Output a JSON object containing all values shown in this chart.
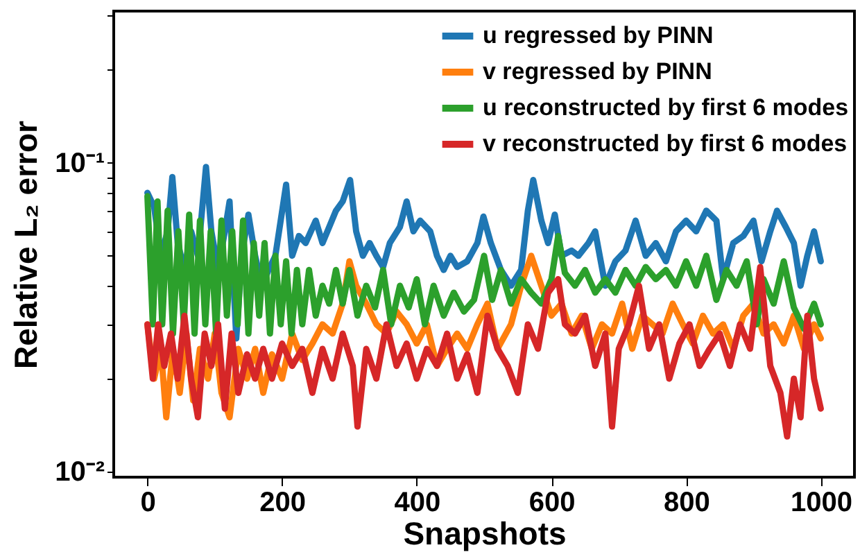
{
  "chart_data": {
    "type": "line",
    "xlabel": "Snapshots",
    "ylabel": "Relative L₂ error",
    "log": "y",
    "legend": "top right",
    "grid": false,
    "line_style": "solid",
    "marker": "none",
    "xlim": [
      -50,
      1050
    ],
    "xticks": [
      0,
      200,
      400,
      600,
      800,
      1000
    ],
    "ylim": [
      0.0096,
      0.31
    ],
    "yticks": [
      {
        "value": 0.01,
        "label": "10⁻²"
      },
      {
        "value": 0.02,
        "label": null
      },
      {
        "value": 0.03,
        "label": null
      },
      {
        "value": 0.04,
        "label": null
      },
      {
        "value": 0.05,
        "label": null
      },
      {
        "value": 0.06,
        "label": null
      },
      {
        "value": 0.07,
        "label": null
      },
      {
        "value": 0.08,
        "label": null
      },
      {
        "value": 0.09,
        "label": null
      },
      {
        "value": 0.1,
        "label": "10⁻¹"
      },
      {
        "value": 0.2,
        "label": null
      },
      {
        "value": 0.3,
        "label": null
      }
    ],
    "series": [
      {
        "name": "u regressed by PINN",
        "color": "#1f77b4",
        "x": [
          0,
          10,
          20,
          30,
          37,
          45,
          55,
          65,
          75,
          87,
          95,
          105,
          115,
          122,
          132,
          140,
          150,
          160,
          170,
          180,
          190,
          206,
          215,
          225,
          235,
          250,
          260,
          270,
          280,
          290,
          301,
          310,
          320,
          330,
          340,
          350,
          360,
          375,
          385,
          395,
          405,
          420,
          430,
          440,
          450,
          460,
          475,
          490,
          499,
          510,
          525,
          540,
          555,
          565,
          573,
          585,
          595,
          605,
          615,
          630,
          640,
          655,
          665,
          680,
          695,
          710,
          725,
          740,
          755,
          770,
          785,
          800,
          815,
          830,
          845,
          855,
          870,
          885,
          900,
          912,
          925,
          935,
          948,
          960,
          970,
          980,
          990,
          1000
        ],
        "values": [
          0.08,
          0.072,
          0.05,
          0.06,
          0.09,
          0.055,
          0.045,
          0.06,
          0.05,
          0.097,
          0.06,
          0.045,
          0.06,
          0.075,
          0.027,
          0.05,
          0.068,
          0.05,
          0.04,
          0.045,
          0.05,
          0.085,
          0.05,
          0.058,
          0.055,
          0.065,
          0.055,
          0.062,
          0.07,
          0.075,
          0.088,
          0.06,
          0.05,
          0.055,
          0.05,
          0.046,
          0.055,
          0.062,
          0.075,
          0.06,
          0.065,
          0.06,
          0.05,
          0.045,
          0.05,
          0.046,
          0.048,
          0.055,
          0.067,
          0.055,
          0.045,
          0.04,
          0.045,
          0.07,
          0.088,
          0.065,
          0.055,
          0.068,
          0.05,
          0.052,
          0.05,
          0.055,
          0.06,
          0.04,
          0.048,
          0.052,
          0.065,
          0.05,
          0.055,
          0.048,
          0.06,
          0.065,
          0.06,
          0.07,
          0.065,
          0.042,
          0.055,
          0.058,
          0.065,
          0.048,
          0.06,
          0.07,
          0.062,
          0.055,
          0.04,
          0.05,
          0.06,
          0.048
        ]
      },
      {
        "name": "v regressed by PINN",
        "color": "#ff7f0e",
        "x": [
          0,
          10,
          20,
          28,
          38,
          48,
          58,
          68,
          78,
          90,
          100,
          110,
          122,
          135,
          148,
          160,
          172,
          185,
          200,
          215,
          230,
          245,
          260,
          275,
          290,
          300,
          310,
          325,
          340,
          355,
          370,
          385,
          400,
          415,
          430,
          445,
          460,
          475,
          490,
          505,
          520,
          540,
          555,
          570,
          585,
          600,
          615,
          630,
          645,
          660,
          675,
          690,
          705,
          720,
          735,
          750,
          765,
          780,
          795,
          810,
          825,
          840,
          855,
          870,
          885,
          900,
          915,
          930,
          945,
          960,
          975,
          990,
          1000
        ],
        "values": [
          0.03,
          0.02,
          0.025,
          0.015,
          0.025,
          0.018,
          0.028,
          0.017,
          0.025,
          0.02,
          0.028,
          0.018,
          0.015,
          0.025,
          0.02,
          0.025,
          0.018,
          0.024,
          0.02,
          0.028,
          0.023,
          0.026,
          0.03,
          0.028,
          0.035,
          0.048,
          0.04,
          0.035,
          0.03,
          0.028,
          0.033,
          0.03,
          0.026,
          0.03,
          0.022,
          0.025,
          0.028,
          0.025,
          0.03,
          0.035,
          0.025,
          0.03,
          0.04,
          0.05,
          0.04,
          0.032,
          0.035,
          0.028,
          0.032,
          0.025,
          0.03,
          0.028,
          0.035,
          0.025,
          0.032,
          0.03,
          0.028,
          0.035,
          0.03,
          0.026,
          0.032,
          0.028,
          0.03,
          0.025,
          0.032,
          0.035,
          0.028,
          0.03,
          0.026,
          0.032,
          0.025,
          0.03,
          0.027
        ]
      },
      {
        "name": "u reconstructed by first 6 modes",
        "color": "#2ca02c",
        "x": [
          0,
          8,
          15,
          22,
          30,
          38,
          46,
          54,
          62,
          70,
          78,
          86,
          94,
          102,
          110,
          118,
          126,
          134,
          142,
          150,
          158,
          166,
          174,
          182,
          190,
          198,
          206,
          214,
          222,
          230,
          240,
          250,
          260,
          270,
          280,
          290,
          300,
          312,
          325,
          338,
          350,
          362,
          375,
          388,
          400,
          412,
          425,
          440,
          455,
          470,
          485,
          500,
          512,
          525,
          540,
          555,
          570,
          585,
          600,
          610,
          620,
          635,
          650,
          665,
          680,
          695,
          710,
          725,
          740,
          755,
          770,
          785,
          800,
          815,
          830,
          845,
          860,
          875,
          890,
          905,
          915,
          930,
          945,
          960,
          975,
          990,
          1000
        ],
        "values": [
          0.078,
          0.03,
          0.075,
          0.03,
          0.07,
          0.028,
          0.06,
          0.03,
          0.068,
          0.028,
          0.065,
          0.03,
          0.06,
          0.028,
          0.065,
          0.032,
          0.06,
          0.03,
          0.065,
          0.028,
          0.055,
          0.032,
          0.055,
          0.028,
          0.05,
          0.03,
          0.048,
          0.028,
          0.045,
          0.03,
          0.045,
          0.032,
          0.04,
          0.035,
          0.045,
          0.035,
          0.045,
          0.032,
          0.04,
          0.034,
          0.045,
          0.03,
          0.04,
          0.034,
          0.042,
          0.03,
          0.04,
          0.032,
          0.038,
          0.033,
          0.036,
          0.05,
          0.036,
          0.045,
          0.035,
          0.042,
          0.038,
          0.035,
          0.042,
          0.058,
          0.044,
          0.04,
          0.045,
          0.038,
          0.042,
          0.038,
          0.045,
          0.04,
          0.046,
          0.042,
          0.045,
          0.04,
          0.048,
          0.04,
          0.05,
          0.036,
          0.045,
          0.04,
          0.048,
          0.03,
          0.042,
          0.035,
          0.048,
          0.034,
          0.029,
          0.035,
          0.03
        ]
      },
      {
        "name": "v reconstructed by first 6 modes",
        "color": "#d62728",
        "x": [
          0,
          8,
          16,
          25,
          35,
          45,
          55,
          65,
          75,
          85,
          95,
          105,
          115,
          125,
          135,
          148,
          160,
          172,
          185,
          200,
          215,
          230,
          245,
          260,
          275,
          290,
          305,
          312,
          325,
          340,
          355,
          370,
          385,
          400,
          415,
          430,
          445,
          460,
          475,
          490,
          505,
          520,
          535,
          550,
          565,
          580,
          595,
          610,
          620,
          635,
          650,
          665,
          680,
          690,
          700,
          715,
          730,
          745,
          760,
          775,
          790,
          805,
          820,
          835,
          850,
          865,
          880,
          895,
          910,
          925,
          940,
          950,
          960,
          970,
          980,
          990,
          1000
        ],
        "values": [
          0.03,
          0.02,
          0.03,
          0.022,
          0.028,
          0.02,
          0.032,
          0.02,
          0.015,
          0.028,
          0.022,
          0.03,
          0.016,
          0.028,
          0.018,
          0.024,
          0.02,
          0.025,
          0.02,
          0.026,
          0.022,
          0.025,
          0.018,
          0.025,
          0.02,
          0.028,
          0.022,
          0.014,
          0.025,
          0.02,
          0.03,
          0.022,
          0.026,
          0.02,
          0.025,
          0.022,
          0.028,
          0.02,
          0.024,
          0.018,
          0.032,
          0.025,
          0.022,
          0.018,
          0.03,
          0.025,
          0.038,
          0.042,
          0.03,
          0.028,
          0.032,
          0.022,
          0.028,
          0.014,
          0.025,
          0.03,
          0.04,
          0.025,
          0.03,
          0.02,
          0.026,
          0.03,
          0.022,
          0.025,
          0.028,
          0.022,
          0.03,
          0.025,
          0.046,
          0.022,
          0.018,
          0.013,
          0.02,
          0.015,
          0.032,
          0.02,
          0.016
        ]
      }
    ]
  }
}
